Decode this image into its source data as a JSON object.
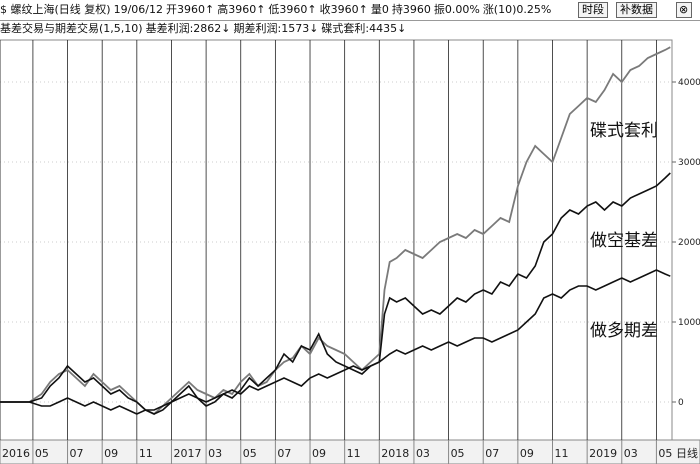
{
  "header": {
    "items": [
      "$ 螺纹上海(日线 复权)",
      "19/06/12",
      "开3960↑",
      "高3960↑",
      "低3960↑",
      "收3960↑",
      "量0",
      "持3960",
      "振0.00%",
      "涨(10)0.25%"
    ],
    "buttons": [
      "时段",
      "补数据"
    ]
  },
  "indicator": {
    "name": "基差交易与期差交易(1,5,10)",
    "items": [
      "基差利润:2862↓",
      "期差利润:1573↓",
      "碟式套利:4435↓"
    ]
  },
  "period_label": "日线",
  "chart_data": {
    "type": "line",
    "x": [
      2.1,
      3.8,
      4.5,
      5,
      5.5,
      6,
      6.5,
      7,
      7.5,
      8,
      8.5,
      9,
      9.5,
      10,
      10.5,
      11,
      11.5,
      12,
      12.5,
      13,
      13.5,
      14,
      14.5,
      15,
      15.5,
      16,
      16.5,
      17,
      17.5,
      18,
      18.5,
      19,
      19.5,
      20,
      20.5,
      21,
      21.5,
      22,
      22.5,
      23,
      23.5,
      24,
      24.3,
      24.6,
      25,
      25.5,
      26,
      26.5,
      27,
      27.5,
      28,
      28.5,
      29,
      29.5,
      30,
      30.5,
      31,
      31.5,
      32,
      32.5,
      33,
      33.5,
      34,
      34.5,
      35,
      35.5,
      36,
      36.5,
      37,
      37.5,
      38,
      38.5,
      39,
      39.5,
      40,
      40.5,
      40.8
    ],
    "series": [
      {
        "name": "碟式套利",
        "color": "#7a7a7a",
        "values": [
          0,
          0,
          100,
          250,
          350,
          400,
          300,
          200,
          350,
          250,
          150,
          200,
          100,
          0,
          -100,
          -150,
          -50,
          50,
          150,
          250,
          150,
          100,
          50,
          150,
          100,
          250,
          350,
          200,
          250,
          400,
          500,
          550,
          700,
          600,
          800,
          700,
          650,
          600,
          500,
          400,
          500,
          600,
          1400,
          1750,
          1800,
          1900,
          1850,
          1800,
          1900,
          2000,
          2050,
          2100,
          2050,
          2150,
          2100,
          2200,
          2300,
          2250,
          2700,
          3000,
          3200,
          3100,
          3000,
          3300,
          3600,
          3700,
          3800,
          3750,
          3900,
          4100,
          4000,
          4150,
          4200,
          4300,
          4350,
          4400,
          4435
        ]
      },
      {
        "name": "做空基差",
        "color": "#111111",
        "values": [
          0,
          0,
          50,
          200,
          300,
          450,
          350,
          250,
          300,
          200,
          100,
          150,
          50,
          0,
          -100,
          -150,
          -100,
          0,
          100,
          200,
          50,
          -50,
          0,
          100,
          50,
          150,
          300,
          200,
          300,
          400,
          600,
          500,
          700,
          650,
          850,
          600,
          500,
          450,
          400,
          350,
          450,
          500,
          1100,
          1300,
          1250,
          1300,
          1200,
          1100,
          1150,
          1100,
          1200,
          1300,
          1250,
          1350,
          1400,
          1350,
          1500,
          1450,
          1600,
          1550,
          1700,
          2000,
          2100,
          2300,
          2400,
          2350,
          2450,
          2500,
          2400,
          2500,
          2450,
          2550,
          2600,
          2650,
          2700,
          2800,
          2862
        ]
      },
      {
        "name": "做多期差",
        "color": "#111111",
        "values": [
          0,
          0,
          -50,
          -50,
          0,
          50,
          0,
          -50,
          0,
          -50,
          -100,
          -50,
          -100,
          -150,
          -100,
          -100,
          -50,
          0,
          50,
          100,
          50,
          0,
          50,
          100,
          150,
          100,
          200,
          150,
          200,
          250,
          300,
          250,
          200,
          300,
          350,
          300,
          350,
          400,
          450,
          400,
          450,
          500,
          550,
          600,
          650,
          600,
          650,
          700,
          650,
          700,
          750,
          700,
          750,
          800,
          800,
          750,
          800,
          850,
          900,
          1000,
          1100,
          1300,
          1350,
          1300,
          1400,
          1450,
          1450,
          1400,
          1450,
          1500,
          1550,
          1500,
          1550,
          1600,
          1650,
          1600,
          1573
        ]
      }
    ],
    "xlim": [
      2.1,
      40.9
    ],
    "xticks": [
      {
        "value": 2.1,
        "label": "2016"
      },
      {
        "value": 4,
        "label": "05"
      },
      {
        "value": 6,
        "label": "07"
      },
      {
        "value": 8,
        "label": "09"
      },
      {
        "value": 10,
        "label": "11"
      },
      {
        "value": 12,
        "label": "2017"
      },
      {
        "value": 14,
        "label": "03"
      },
      {
        "value": 16,
        "label": "05"
      },
      {
        "value": 18,
        "label": "07"
      },
      {
        "value": 20,
        "label": "09"
      },
      {
        "value": 22,
        "label": "11"
      },
      {
        "value": 24,
        "label": "2018"
      },
      {
        "value": 26,
        "label": "03"
      },
      {
        "value": 28,
        "label": "05"
      },
      {
        "value": 30,
        "label": "07"
      },
      {
        "value": 32,
        "label": "09"
      },
      {
        "value": 34,
        "label": "11"
      },
      {
        "value": 36,
        "label": "2019"
      },
      {
        "value": 38,
        "label": "03"
      },
      {
        "value": 40,
        "label": "05"
      }
    ],
    "ylim": [
      -475,
      4525
    ],
    "yticks": [
      0,
      1000,
      2000,
      3000,
      4000
    ],
    "grid": true
  }
}
